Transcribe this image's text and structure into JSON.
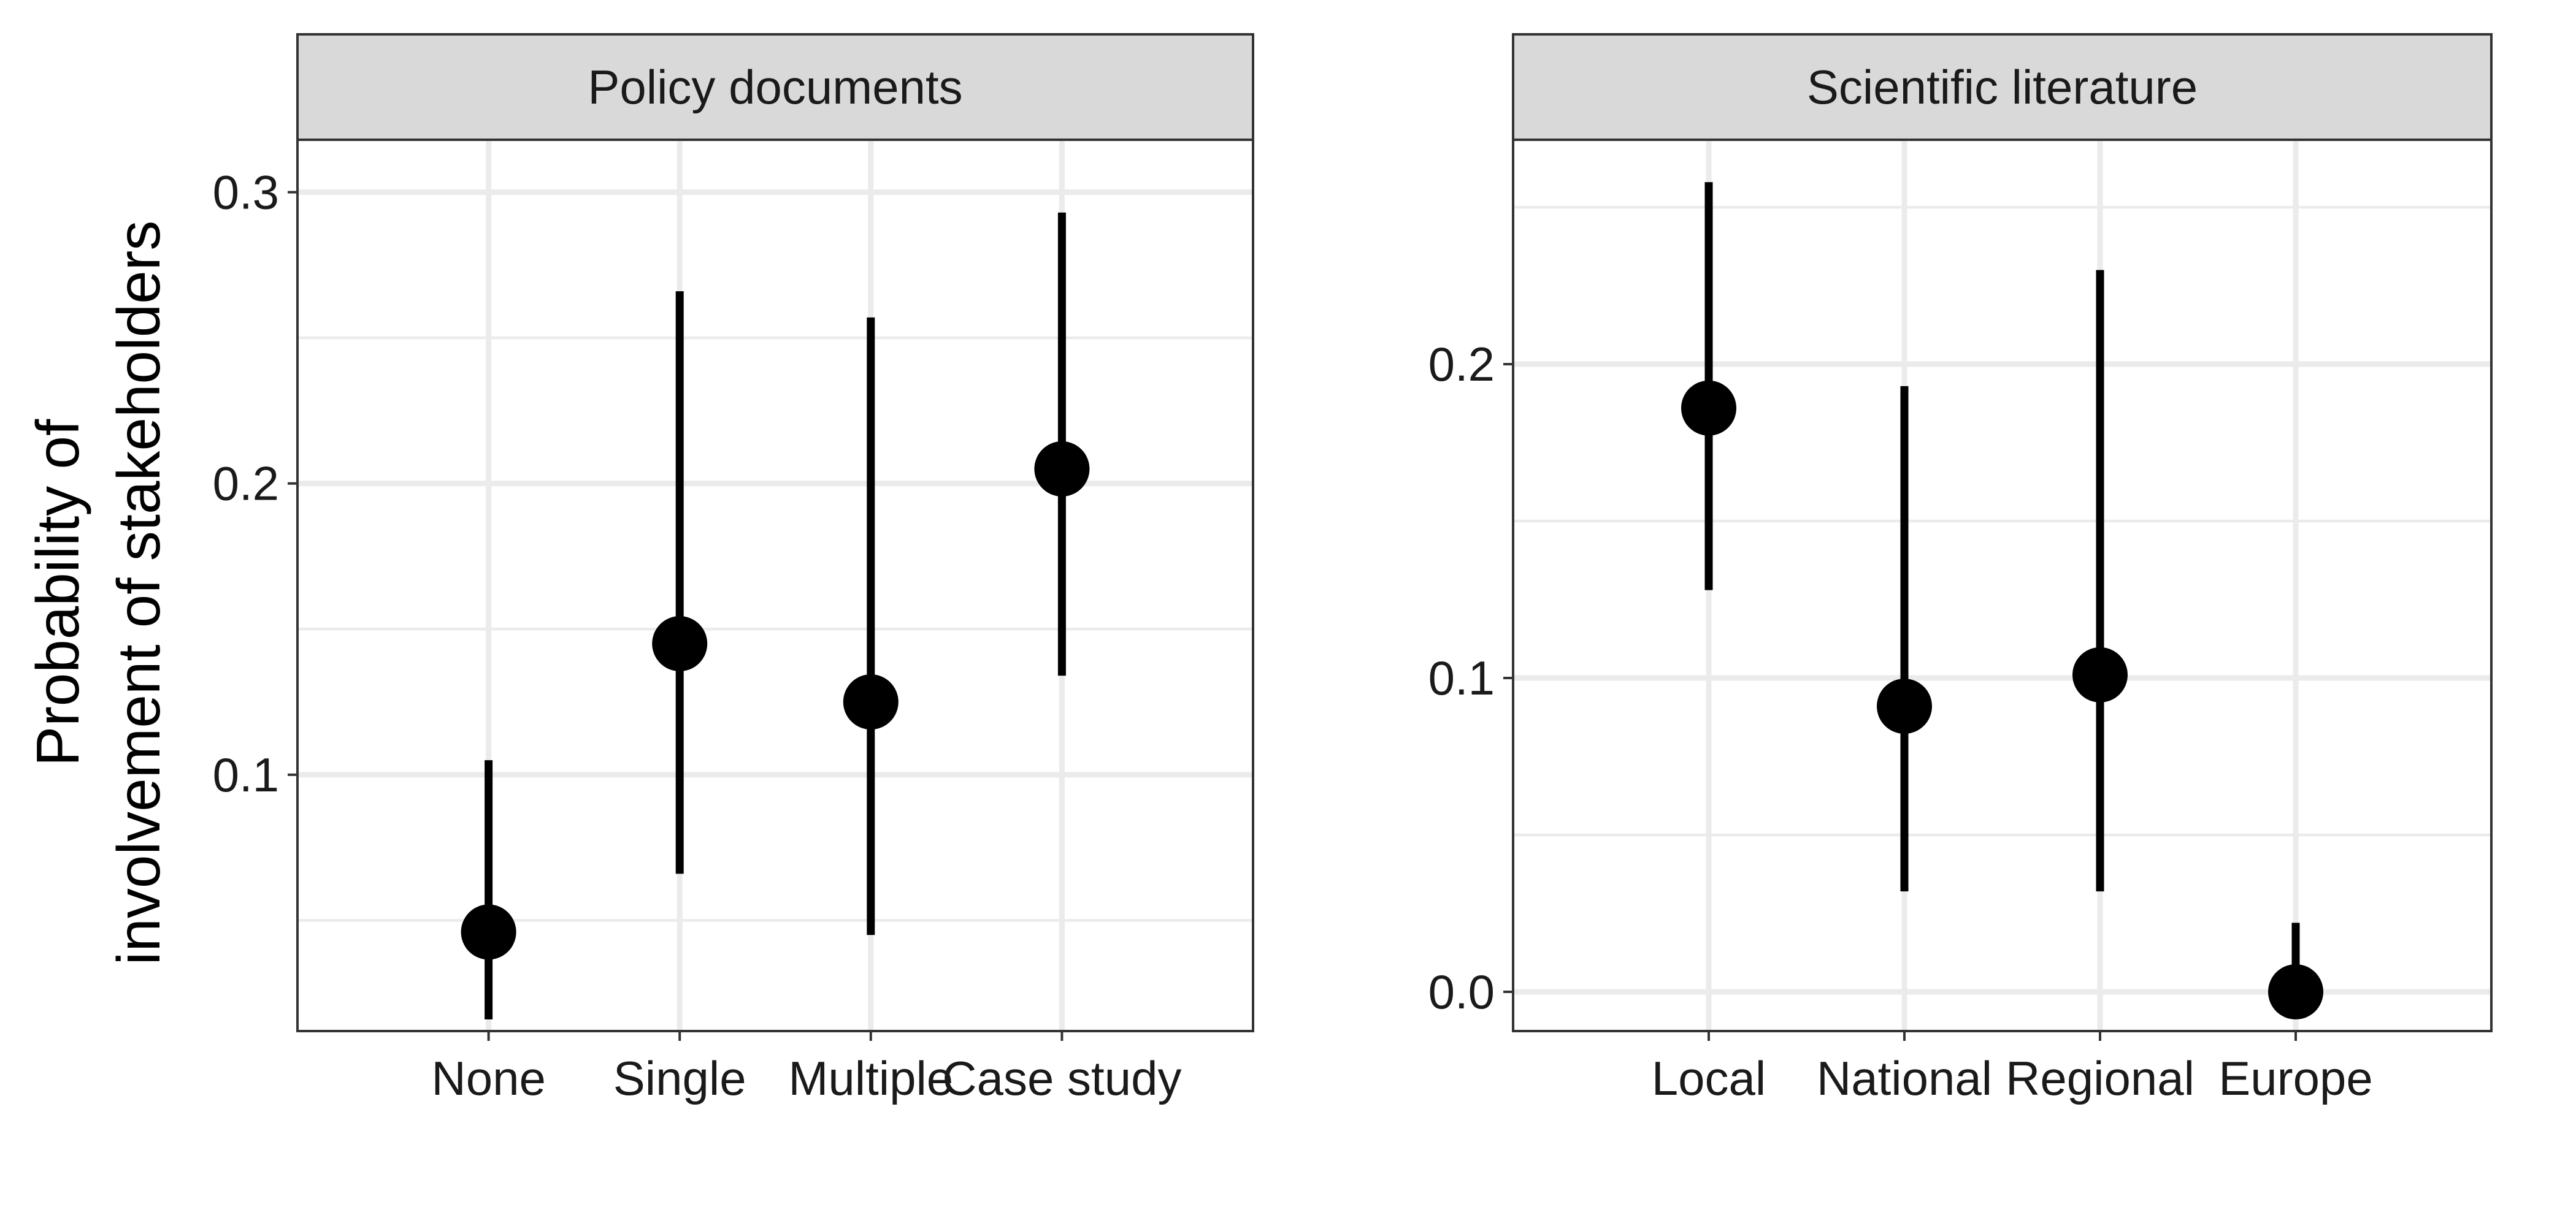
{
  "y_axis_title": [
    "Probability of",
    "involvement of stakeholders"
  ],
  "chart_data": [
    {
      "type": "scatter",
      "panel": "Policy documents",
      "categories": [
        "None",
        "Single",
        "Multiple",
        "Case study"
      ],
      "values": [
        0.046,
        0.145,
        0.125,
        0.205
      ],
      "lower": [
        0.016,
        0.066,
        0.045,
        0.134
      ],
      "upper": [
        0.105,
        0.266,
        0.257,
        0.293
      ],
      "ylim": [
        0.012,
        0.318
      ],
      "yticks": [
        0.1,
        0.2,
        0.3
      ],
      "ytick_labels": [
        "0.1",
        "0.2",
        "0.3"
      ],
      "minor_yticks": [
        0.05,
        0.15,
        0.25
      ],
      "grid": true
    },
    {
      "type": "scatter",
      "panel": "Scientific literature",
      "categories": [
        "Local",
        "National",
        "Regional",
        "Europe"
      ],
      "values": [
        0.186,
        0.091,
        0.101,
        0.0
      ],
      "lower": [
        0.128,
        0.032,
        0.032,
        0.0
      ],
      "upper": [
        0.258,
        0.193,
        0.23,
        0.022
      ],
      "ylim": [
        -0.0125,
        0.2715
      ],
      "yticks": [
        0.0,
        0.1,
        0.2
      ],
      "ytick_labels": [
        "0.0",
        "0.1",
        "0.2"
      ],
      "minor_yticks": [
        0.05,
        0.15,
        0.25
      ],
      "grid": true
    }
  ]
}
